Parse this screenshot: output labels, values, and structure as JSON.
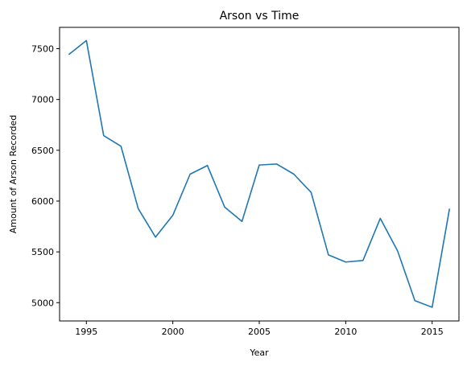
{
  "colors": {
    "series": "#1f77b4",
    "axis": "#000000",
    "background": "#ffffff"
  },
  "chart_data": {
    "type": "line",
    "title": "Arson vs Time",
    "xlabel": "Year",
    "ylabel": "Amount of Arson Recorded",
    "xlim": [
      1993.45,
      2016.55
    ],
    "ylim": [
      4820,
      7710
    ],
    "xticks": [
      1995,
      2000,
      2005,
      2010,
      2015
    ],
    "yticks": [
      5000,
      5500,
      6000,
      6500,
      7000,
      7500
    ],
    "grid": false,
    "legend": "none",
    "x": [
      1994,
      1995,
      1996,
      1997,
      1998,
      1999,
      2000,
      2001,
      2002,
      2003,
      2004,
      2005,
      2006,
      2007,
      2008,
      2009,
      2010,
      2011,
      2012,
      2013,
      2014,
      2015,
      2016
    ],
    "series": [
      {
        "values": [
          7445,
          7580,
          6645,
          6540,
          5925,
          5645,
          5860,
          6265,
          6350,
          5940,
          5800,
          6355,
          6365,
          6265,
          6085,
          5470,
          5400,
          5415,
          5830,
          5510,
          5020,
          4955,
          5920
        ]
      }
    ]
  }
}
